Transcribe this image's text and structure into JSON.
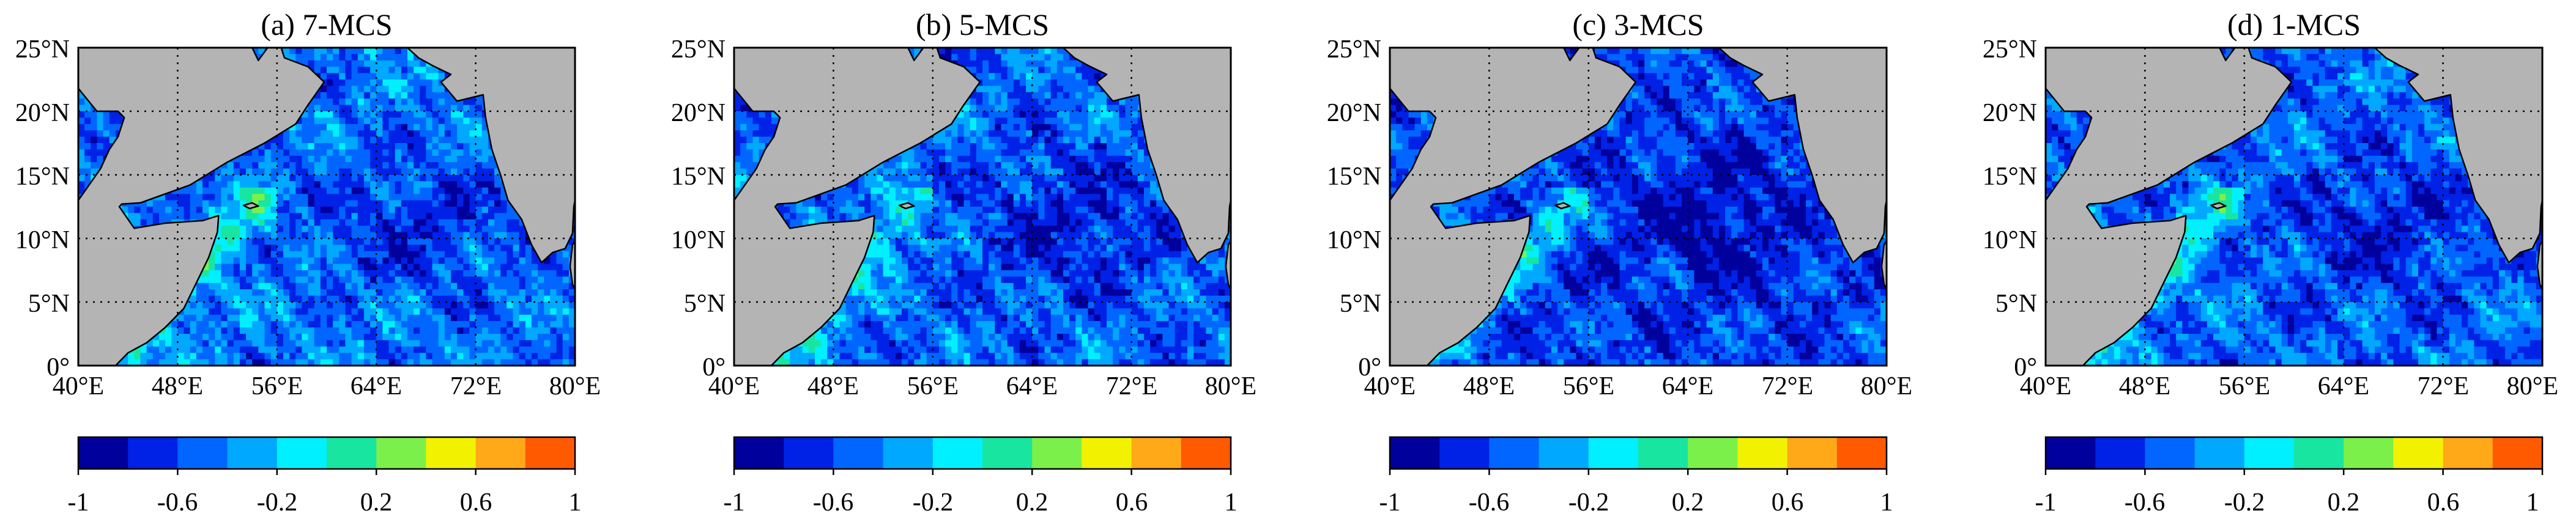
{
  "colors": {
    "land": "#b4b4b4",
    "coast": "#000000",
    "frame": "#000000",
    "grid": "#000000"
  },
  "chart_data": [
    {
      "type": "heatmap",
      "title": "(a) 7-MCS",
      "x_ticks": [
        "40°E",
        "48°E",
        "56°E",
        "64°E",
        "72°E",
        "80°E"
      ],
      "y_ticks": [
        "0°",
        "5°N",
        "10°N",
        "15°N",
        "20°N",
        "25°N"
      ],
      "xlim": [
        40,
        80
      ],
      "ylim": [
        0,
        25
      ],
      "grid": true,
      "mean_value": -0.45,
      "colorbar": {
        "ticks": [
          "-1",
          "-0.6",
          "-0.2",
          "0.2",
          "0.6",
          "1"
        ],
        "range": [
          -1,
          1
        ],
        "colors": [
          "#00009c",
          "#0022e6",
          "#0066ff",
          "#00a8ff",
          "#00f0ff",
          "#18e5a0",
          "#7cf04a",
          "#f2f200",
          "#ffa818",
          "#ff5a00"
        ]
      }
    },
    {
      "type": "heatmap",
      "title": "(b) 5-MCS",
      "x_ticks": [
        "40°E",
        "48°E",
        "56°E",
        "64°E",
        "72°E",
        "80°E"
      ],
      "y_ticks": [
        "0°",
        "5°N",
        "10°N",
        "15°N",
        "20°N",
        "25°N"
      ],
      "xlim": [
        40,
        80
      ],
      "ylim": [
        0,
        25
      ],
      "grid": true,
      "mean_value": -0.5,
      "colorbar": {
        "ticks": [
          "-1",
          "-0.6",
          "-0.2",
          "0.2",
          "0.6",
          "1"
        ],
        "range": [
          -1,
          1
        ],
        "colors": [
          "#00009c",
          "#0022e6",
          "#0066ff",
          "#00a8ff",
          "#00f0ff",
          "#18e5a0",
          "#7cf04a",
          "#f2f200",
          "#ffa818",
          "#ff5a00"
        ]
      }
    },
    {
      "type": "heatmap",
      "title": "(c) 3-MCS",
      "x_ticks": [
        "40°E",
        "48°E",
        "56°E",
        "64°E",
        "72°E",
        "80°E"
      ],
      "y_ticks": [
        "0°",
        "5°N",
        "10°N",
        "15°N",
        "20°N",
        "25°N"
      ],
      "xlim": [
        40,
        80
      ],
      "ylim": [
        0,
        25
      ],
      "grid": true,
      "mean_value": -0.6,
      "colorbar": {
        "ticks": [
          "-1",
          "-0.6",
          "-0.2",
          "0.2",
          "0.6",
          "1"
        ],
        "range": [
          -1,
          1
        ],
        "colors": [
          "#00009c",
          "#0022e6",
          "#0066ff",
          "#00a8ff",
          "#00f0ff",
          "#18e5a0",
          "#7cf04a",
          "#f2f200",
          "#ffa818",
          "#ff5a00"
        ]
      }
    },
    {
      "type": "heatmap",
      "title": "(d) 1-MCS",
      "x_ticks": [
        "40°E",
        "48°E",
        "56°E",
        "64°E",
        "72°E",
        "80°E"
      ],
      "y_ticks": [
        "0°",
        "5°N",
        "10°N",
        "15°N",
        "20°N",
        "25°N"
      ],
      "xlim": [
        40,
        80
      ],
      "ylim": [
        0,
        25
      ],
      "grid": true,
      "mean_value": -0.5,
      "colorbar": {
        "ticks": [
          "-1",
          "-0.6",
          "-0.2",
          "0.2",
          "0.6",
          "1"
        ],
        "range": [
          -1,
          1
        ],
        "colors": [
          "#00009c",
          "#0022e6",
          "#0066ff",
          "#00a8ff",
          "#00f0ff",
          "#18e5a0",
          "#7cf04a",
          "#f2f200",
          "#ffa818",
          "#ff5a00"
        ]
      }
    }
  ]
}
